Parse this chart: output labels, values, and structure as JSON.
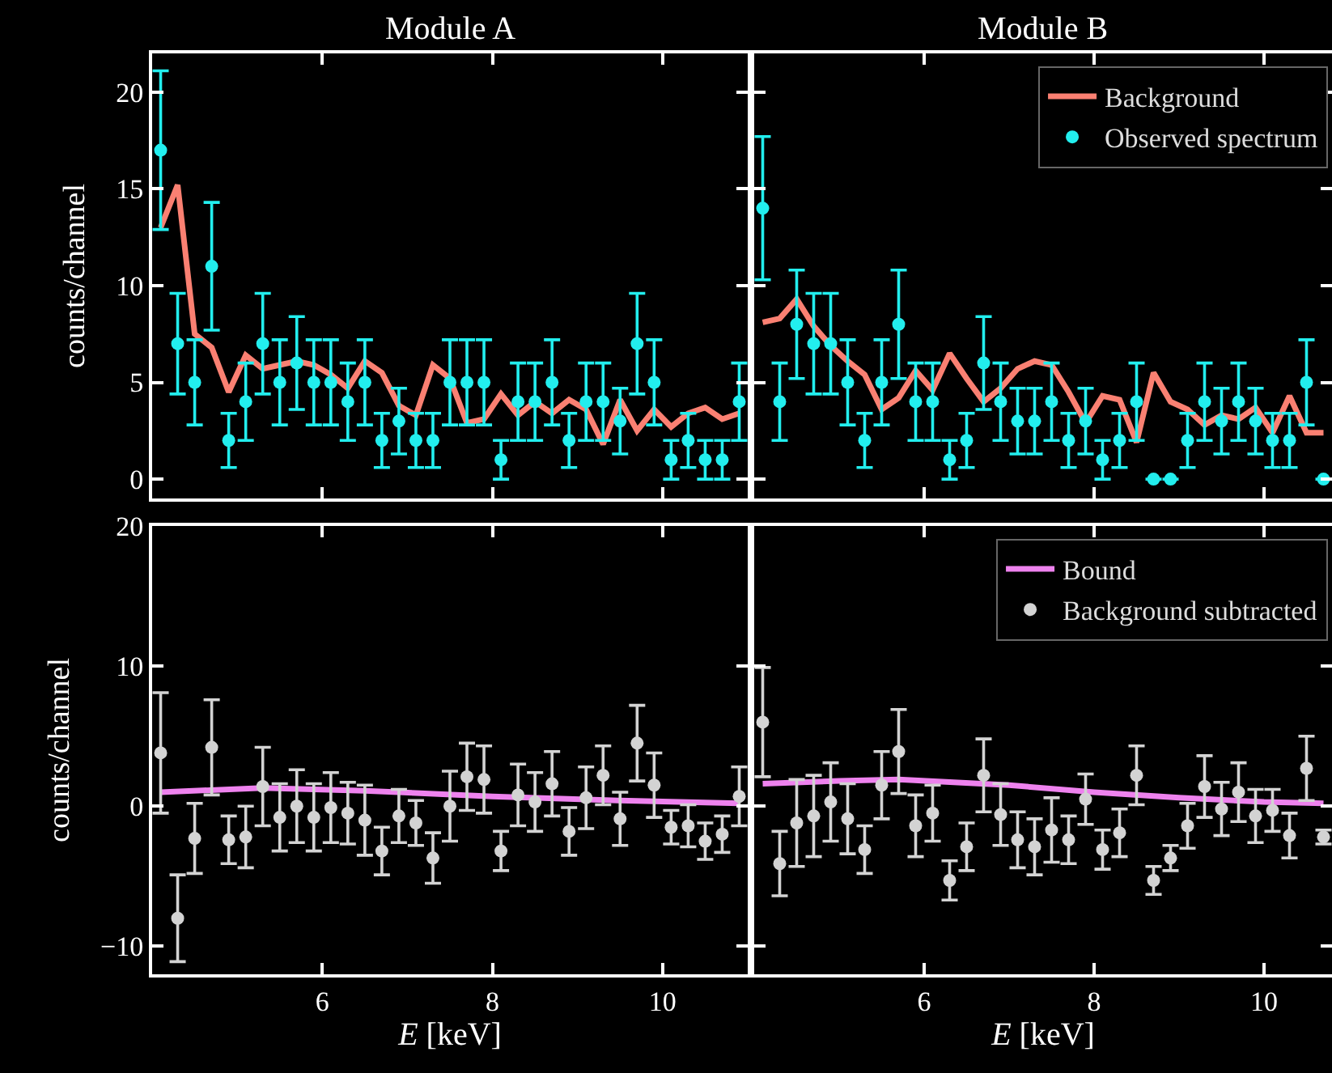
{
  "chart_data": [
    {
      "type": "scatter",
      "title": "Module A",
      "ylabel": "counts/channel",
      "xlim": [
        4,
        11
      ],
      "xticks": [
        6,
        8,
        10
      ],
      "ylim": [
        -1,
        22
      ],
      "yticks": [
        0,
        5,
        10,
        15,
        20
      ],
      "tick_labels": "y",
      "x": [
        4.1,
        4.3,
        4.5,
        4.7,
        4.9,
        5.1,
        5.3,
        5.5,
        5.7,
        5.9,
        6.1,
        6.3,
        6.5,
        6.7,
        6.9,
        7.1,
        7.3,
        7.5,
        7.7,
        7.9,
        8.1,
        8.3,
        8.5,
        8.7,
        8.9,
        9.1,
        9.3,
        9.5,
        9.7,
        9.9,
        10.1,
        10.3,
        10.5,
        10.7,
        10.9
      ],
      "series": [
        {
          "type": "line",
          "color": "#fa8072",
          "values": [
            13.0,
            15.2,
            7.5,
            6.8,
            4.5,
            6.4,
            5.7,
            5.9,
            6.1,
            5.9,
            5.4,
            4.7,
            6.1,
            5.5,
            3.8,
            3.3,
            5.9,
            5.2,
            2.9,
            3.1,
            4.4,
            3.3,
            4.0,
            3.4,
            4.1,
            3.6,
            1.8,
            4.1,
            2.5,
            3.6,
            2.7,
            3.4,
            3.7,
            3.1,
            3.4
          ],
          "marker": "none"
        },
        {
          "color": "#22eeee",
          "marker": "circle",
          "values": [
            17,
            7,
            5,
            11,
            2,
            4,
            7,
            5,
            6,
            5,
            5,
            4,
            5,
            2,
            3,
            2,
            2,
            5,
            5,
            5,
            1,
            4,
            4,
            5,
            2,
            4,
            4,
            3,
            7,
            5,
            1,
            2,
            1,
            1,
            4
          ],
          "errors": [
            4.1,
            2.6,
            2.2,
            3.3,
            1.4,
            2,
            2.6,
            2.2,
            2.4,
            2.2,
            2.2,
            2,
            2.2,
            1.4,
            1.7,
            1.4,
            1.4,
            2.2,
            2.2,
            2.2,
            1,
            2,
            2,
            2.2,
            1.4,
            2,
            2,
            1.7,
            2.6,
            2.2,
            1,
            1.4,
            1,
            1,
            2
          ]
        }
      ]
    },
    {
      "type": "scatter",
      "title": "Module B",
      "xlim": [
        4,
        10.8
      ],
      "xticks": [
        6,
        8,
        10
      ],
      "ylim": [
        -1,
        22
      ],
      "yticks": [
        0,
        5,
        10,
        15,
        20
      ],
      "tick_labels": false,
      "legend": "top right",
      "x": [
        4.1,
        4.3,
        4.5,
        4.7,
        4.9,
        5.1,
        5.3,
        5.5,
        5.7,
        5.9,
        6.1,
        6.3,
        6.5,
        6.7,
        6.9,
        7.1,
        7.3,
        7.5,
        7.7,
        7.9,
        8.1,
        8.3,
        8.5,
        8.7,
        8.9,
        9.1,
        9.3,
        9.5,
        9.7,
        9.9,
        10.1,
        10.3,
        10.5,
        10.7
      ],
      "series": [
        {
          "type": "line",
          "name": "Background",
          "color": "#fa8072",
          "values": [
            8.1,
            8.3,
            9.3,
            7.9,
            6.9,
            6.1,
            5.4,
            3.6,
            4.2,
            5.6,
            4.6,
            6.5,
            5.2,
            4.0,
            4.7,
            5.7,
            6.1,
            5.9,
            4.5,
            2.9,
            4.3,
            4.1,
            1.9,
            5.5,
            4.0,
            3.6,
            2.8,
            3.3,
            3.1,
            3.7,
            2.4,
            4.3,
            2.4,
            2.4
          ],
          "marker": "none"
        },
        {
          "name": "Observed spectrum",
          "color": "#22eeee",
          "marker": "circle",
          "values": [
            14,
            4,
            8,
            7,
            7,
            5,
            2,
            5,
            8,
            4,
            4,
            1,
            2,
            6,
            4,
            3,
            3,
            4,
            2,
            3,
            1,
            2,
            4,
            0,
            0,
            2,
            4,
            3,
            4,
            3,
            2,
            2,
            5,
            0
          ],
          "errors": [
            3.7,
            2,
            2.8,
            2.6,
            2.6,
            2.2,
            1.4,
            2.2,
            2.8,
            2,
            2,
            1,
            1.4,
            2.4,
            2,
            1.7,
            1.7,
            2,
            1.4,
            1.7,
            1,
            1.4,
            2,
            0,
            0,
            1.4,
            2,
            1.7,
            2,
            1.7,
            1.4,
            1.4,
            2.2,
            0
          ]
        }
      ]
    },
    {
      "type": "scatter",
      "xlabel": "E [keV]",
      "ylabel": "counts/channel",
      "xlim": [
        4,
        11
      ],
      "xticks": [
        6,
        8,
        10
      ],
      "ylim": [
        -12,
        20
      ],
      "yticks": [
        -10,
        0,
        10,
        20
      ],
      "x": [
        4.1,
        4.3,
        4.5,
        4.7,
        4.9,
        5.1,
        5.3,
        5.5,
        5.7,
        5.9,
        6.1,
        6.3,
        6.5,
        6.7,
        6.9,
        7.1,
        7.3,
        7.5,
        7.7,
        7.9,
        8.1,
        8.3,
        8.5,
        8.7,
        8.9,
        9.1,
        9.3,
        9.5,
        9.7,
        9.9,
        10.1,
        10.3,
        10.5,
        10.7,
        10.9
      ],
      "series": [
        {
          "type": "line",
          "color": "#ee82ee",
          "x": [
            4.1,
            5.3,
            6.5,
            8.0,
            9.5,
            10.9
          ],
          "values": [
            1.0,
            1.3,
            1.1,
            0.7,
            0.4,
            0.2
          ],
          "marker": "none"
        },
        {
          "color": "#d3d3d3",
          "marker": "circle",
          "values": [
            3.8,
            -8.0,
            -2.3,
            4.2,
            -2.4,
            -2.2,
            1.4,
            -0.8,
            0,
            -0.8,
            -0.1,
            -0.5,
            -1.0,
            -3.2,
            -0.7,
            -1.2,
            -3.7,
            0,
            2.1,
            1.9,
            -3.2,
            0.8,
            0.3,
            1.6,
            -1.8,
            0.6,
            2.2,
            -0.9,
            4.5,
            1.5,
            -1.5,
            -1.4,
            -2.5,
            -2.0,
            0.7
          ],
          "errors": [
            4.3,
            3.1,
            2.5,
            3.4,
            1.7,
            2.2,
            2.8,
            2.4,
            2.6,
            2.4,
            2.5,
            2.2,
            2.5,
            1.7,
            1.9,
            1.6,
            1.8,
            2.5,
            2.4,
            2.4,
            1.4,
            2.2,
            2.1,
            2.3,
            1.7,
            2.2,
            2.1,
            1.9,
            2.7,
            2.3,
            1.2,
            1.5,
            1.3,
            1.3,
            2.1
          ]
        }
      ]
    },
    {
      "type": "scatter",
      "xlabel": "E [keV]",
      "xlim": [
        4,
        10.8
      ],
      "xticks": [
        6,
        8,
        10
      ],
      "ylim": [
        -12,
        20
      ],
      "yticks": [
        -10,
        0,
        10,
        20
      ],
      "tick_labels": "x",
      "legend": "top right",
      "x": [
        4.1,
        4.3,
        4.5,
        4.7,
        4.9,
        5.1,
        5.3,
        5.5,
        5.7,
        5.9,
        6.1,
        6.3,
        6.5,
        6.7,
        6.9,
        7.1,
        7.3,
        7.5,
        7.7,
        7.9,
        8.1,
        8.3,
        8.5,
        8.7,
        8.9,
        9.1,
        9.3,
        9.5,
        9.7,
        9.9,
        10.1,
        10.3,
        10.5,
        10.7
      ],
      "series": [
        {
          "type": "line",
          "name": "Bound",
          "color": "#ee82ee",
          "x": [
            4.1,
            5.0,
            5.7,
            7.0,
            8.0,
            9.0,
            10.0,
            10.7
          ],
          "values": [
            1.6,
            1.8,
            1.9,
            1.5,
            1.0,
            0.6,
            0.3,
            0.2
          ],
          "marker": "none"
        },
        {
          "name": "Background subtracted",
          "color": "#d3d3d3",
          "marker": "circle",
          "values": [
            6.0,
            -4.1,
            -1.2,
            -0.7,
            0.3,
            -0.9,
            -3.1,
            1.5,
            3.9,
            -1.4,
            -0.5,
            -5.3,
            -2.9,
            2.2,
            -0.6,
            -2.4,
            -2.9,
            -1.7,
            -2.4,
            0.5,
            -3.1,
            -1.9,
            2.2,
            -5.3,
            -3.7,
            -1.4,
            1.4,
            -0.2,
            1.0,
            -0.7,
            -0.3,
            -2.1,
            2.7,
            -2.2
          ],
          "errors": [
            3.9,
            2.3,
            3.1,
            2.9,
            2.8,
            2.5,
            1.7,
            2.4,
            3.0,
            2.2,
            2.0,
            1.4,
            1.7,
            2.6,
            2.2,
            2.0,
            2.0,
            2.3,
            1.7,
            1.8,
            1.4,
            1.7,
            2.1,
            1.0,
            0.9,
            1.6,
            2.2,
            1.9,
            2.1,
            1.9,
            1.5,
            1.6,
            2.3,
            0.5
          ]
        }
      ]
    }
  ]
}
